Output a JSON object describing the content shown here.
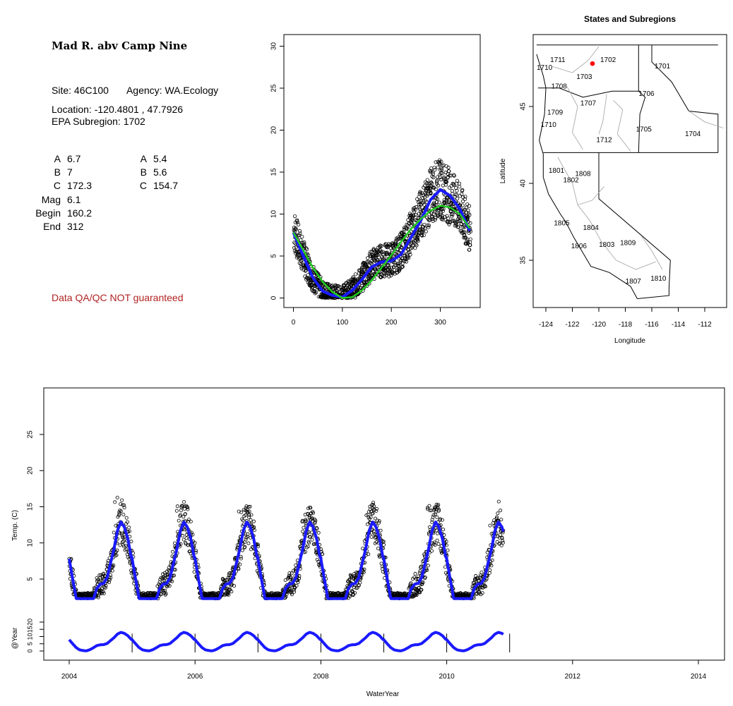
{
  "header": {
    "title": "Mad R. abv Camp Nine",
    "site_label": "Site:",
    "site": "46C100",
    "agency_label": "Agency:",
    "agency": "WA.Ecology",
    "location_label": "Location:",
    "location": "-120.4801 , 47.7926",
    "subregion_label": "EPA Subregion:",
    "subregion": "1702",
    "qa_note": "Data QA/QC NOT guaranteed"
  },
  "params_left": [
    {
      "label": "A",
      "value": "6.7"
    },
    {
      "label": "B",
      "value": "7"
    },
    {
      "label": "C",
      "value": "172.3"
    },
    {
      "label": "Mag",
      "value": "6.1"
    },
    {
      "label": "Begin",
      "value": "160.2"
    },
    {
      "label": "End",
      "value": "312"
    }
  ],
  "params_right": [
    {
      "label": "A",
      "value": "5.4"
    },
    {
      "label": "B",
      "value": "5.6"
    },
    {
      "label": "C",
      "value": "154.7"
    }
  ],
  "colors": {
    "fit": "#1a1aff",
    "green_fit": "#22cc22",
    "points": "#000000",
    "site": "#ff0000",
    "boundary": "#aaaaaa",
    "qa": "#b22222"
  },
  "chart_data": [
    {
      "type": "scatter",
      "id": "seasonal",
      "xlim": [
        0,
        366
      ],
      "ylim": [
        0,
        30
      ],
      "xticks": [
        0,
        100,
        200,
        300
      ],
      "yticks": [
        0,
        5,
        10,
        15,
        20,
        25,
        30
      ],
      "xlabel": "",
      "ylabel": "",
      "series": [
        {
          "kind": "points",
          "x": [
            0,
            10,
            20,
            30,
            40,
            50,
            60,
            70,
            80,
            90,
            100,
            110,
            120,
            130,
            140,
            150,
            160,
            170,
            180,
            190,
            200,
            210,
            220,
            230,
            240,
            250,
            260,
            270,
            280,
            290,
            300,
            310,
            320,
            330,
            340,
            350,
            360
          ],
          "y": [
            8.3,
            6.5,
            5.0,
            3.6,
            2.4,
            1.5,
            0.8,
            0.5,
            0.3,
            0.3,
            0.4,
            0.6,
            1.0,
            1.6,
            2.3,
            3.2,
            3.9,
            4.3,
            4.4,
            4.5,
            4.6,
            5.0,
            5.6,
            6.6,
            7.8,
            8.8,
            9.9,
            10.9,
            12.1,
            12.8,
            13.0,
            12.7,
            12.0,
            11.3,
            10.5,
            9.4,
            8.2
          ]
        },
        {
          "kind": "line",
          "color": "blue",
          "x": [
            0,
            20,
            40,
            60,
            80,
            100,
            120,
            140,
            160,
            180,
            200,
            220,
            240,
            260,
            280,
            300,
            320,
            340,
            360
          ],
          "y": [
            7.8,
            5.0,
            2.4,
            0.8,
            0.3,
            0.1,
            0.9,
            2.2,
            3.7,
            4.3,
            4.4,
            5.2,
            7.2,
            9.2,
            11.7,
            12.9,
            12.2,
            10.6,
            8.0
          ]
        },
        {
          "kind": "line",
          "color": "green",
          "x": [
            0,
            20,
            40,
            60,
            80,
            100,
            120,
            140,
            160,
            180,
            200,
            220,
            240,
            260,
            280,
            300,
            320,
            340,
            360
          ],
          "y": [
            7.8,
            5.7,
            3.6,
            1.9,
            0.7,
            0.0,
            0.1,
            0.9,
            2.1,
            3.6,
            5.1,
            6.7,
            8.2,
            9.4,
            10.4,
            11.0,
            10.8,
            10.0,
            8.3
          ]
        }
      ]
    },
    {
      "type": "scatter",
      "id": "map",
      "title": "States and Subregions",
      "xlabel": "Longitude",
      "ylabel": "Latitude",
      "xlim": [
        -125.5,
        -110.5
      ],
      "ylim": [
        32.2,
        49.3
      ],
      "xticks": [
        -124,
        -122,
        -120,
        -118,
        -116,
        -114,
        -112
      ],
      "yticks": [
        35,
        40,
        45
      ],
      "site": {
        "lon": -120.4801,
        "lat": 47.7926
      },
      "regions": [
        {
          "label": "1711",
          "lon": -123.1,
          "lat": 48.0
        },
        {
          "label": "1702",
          "lon": -119.3,
          "lat": 48.0
        },
        {
          "label": "1701",
          "lon": -115.2,
          "lat": 47.6
        },
        {
          "label": "1710",
          "lon": -124.1,
          "lat": 47.5
        },
        {
          "label": "1703",
          "lon": -121.1,
          "lat": 46.9
        },
        {
          "label": "1708",
          "lon": -123.0,
          "lat": 46.3
        },
        {
          "label": "1706",
          "lon": -116.4,
          "lat": 45.8
        },
        {
          "label": "1707",
          "lon": -120.8,
          "lat": 45.2
        },
        {
          "label": "1709",
          "lon": -123.3,
          "lat": 44.6
        },
        {
          "label": "1710",
          "lon": -123.8,
          "lat": 43.8
        },
        {
          "label": "1705",
          "lon": -116.6,
          "lat": 43.5
        },
        {
          "label": "1704",
          "lon": -112.9,
          "lat": 43.2
        },
        {
          "label": "1712",
          "lon": -119.6,
          "lat": 42.8
        },
        {
          "label": "1801",
          "lon": -123.2,
          "lat": 40.8
        },
        {
          "label": "1808",
          "lon": -121.2,
          "lat": 40.6
        },
        {
          "label": "1802",
          "lon": -122.1,
          "lat": 40.2
        },
        {
          "label": "1805",
          "lon": -122.8,
          "lat": 37.4
        },
        {
          "label": "1804",
          "lon": -120.6,
          "lat": 37.1
        },
        {
          "label": "1806",
          "lon": -121.5,
          "lat": 35.9
        },
        {
          "label": "1803",
          "lon": -119.4,
          "lat": 36.0
        },
        {
          "label": "1809",
          "lon": -117.8,
          "lat": 36.1
        },
        {
          "label": "1810",
          "lon": -115.5,
          "lat": 33.8
        },
        {
          "label": "1807",
          "lon": -117.4,
          "lat": 33.6
        }
      ]
    },
    {
      "type": "scatter",
      "id": "timeseries",
      "xlabel": "WaterYear",
      "ylabel": "Temp. (C)",
      "ylabel2": "@Year",
      "xlim": [
        2003.6,
        2014.4
      ],
      "ylim": [
        -9.5,
        30
      ],
      "xticks": [
        2004,
        2006,
        2008,
        2010,
        2012,
        2014
      ],
      "yticks": [
        5,
        10,
        15,
        20,
        25
      ],
      "yticks2": [
        0,
        5,
        10,
        15,
        20
      ],
      "year_breaks": [
        2005,
        2006,
        2007,
        2008,
        2009,
        2010,
        2011
      ],
      "x_start": 2004,
      "x_end": 2010.9,
      "curve": {
        "doy": [
          0,
          20,
          40,
          60,
          80,
          100,
          120,
          140,
          160,
          180,
          200,
          220,
          240,
          260,
          280,
          300,
          320,
          340,
          360
        ],
        "temp": [
          7.8,
          5.0,
          2.4,
          0.8,
          0.3,
          0.1,
          0.9,
          2.2,
          3.7,
          4.3,
          4.4,
          5.2,
          7.2,
          9.2,
          11.7,
          12.9,
          12.2,
          10.6,
          8.0
        ]
      },
      "year_peaks": [
        {
          "year": 2004,
          "peak": 16.5
        },
        {
          "year": 2005,
          "peak": 15.5
        },
        {
          "year": 2006,
          "peak": 15.0
        },
        {
          "year": 2007,
          "peak": 14.2
        },
        {
          "year": 2008,
          "peak": 15.3
        },
        {
          "year": 2009,
          "peak": 15.2
        },
        {
          "year": 2010,
          "peak": 13.2
        }
      ]
    }
  ]
}
